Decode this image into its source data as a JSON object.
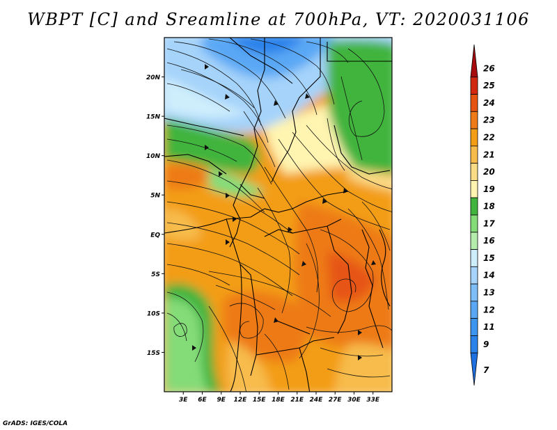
{
  "title": "WBPT [C] and Sreamline at 700hPa, VT: 2020031106",
  "credit": "GrADS: IGES/COLA",
  "map": {
    "lon_range": [
      0,
      36
    ],
    "lat_range": [
      -20,
      25
    ],
    "lat_ticks": [
      {
        "value": 20,
        "label": "20N"
      },
      {
        "value": 15,
        "label": "15N"
      },
      {
        "value": 10,
        "label": "10N"
      },
      {
        "value": 5,
        "label": "5N"
      },
      {
        "value": 0,
        "label": "EQ"
      },
      {
        "value": -5,
        "label": "5S"
      },
      {
        "value": -10,
        "label": "10S"
      },
      {
        "value": -15,
        "label": "15S"
      }
    ],
    "lon_ticks": [
      {
        "value": 3,
        "label": "3E"
      },
      {
        "value": 6,
        "label": "6E"
      },
      {
        "value": 9,
        "label": "9E"
      },
      {
        "value": 12,
        "label": "12E"
      },
      {
        "value": 15,
        "label": "15E"
      },
      {
        "value": 18,
        "label": "18E"
      },
      {
        "value": 21,
        "label": "21E"
      },
      {
        "value": 24,
        "label": "24E"
      },
      {
        "value": 27,
        "label": "27E"
      },
      {
        "value": 30,
        "label": "30E"
      },
      {
        "value": 33,
        "label": "33E"
      }
    ]
  },
  "colorbar": {
    "levels": [
      {
        "label": "7",
        "color": "#1e6fe0"
      },
      {
        "label": "9",
        "color": "#2a82ea"
      },
      {
        "label": "11",
        "color": "#3c96f0"
      },
      {
        "label": "12",
        "color": "#5aa8f5"
      },
      {
        "label": "13",
        "color": "#7dbdf8"
      },
      {
        "label": "14",
        "color": "#a5d3fa"
      },
      {
        "label": "15",
        "color": "#cfeefc"
      },
      {
        "label": "16",
        "color": "#b4ecab"
      },
      {
        "label": "17",
        "color": "#84dc79"
      },
      {
        "label": "18",
        "color": "#40b43c"
      },
      {
        "label": "19",
        "color": "#fff4b0"
      },
      {
        "label": "20",
        "color": "#fbdc86"
      },
      {
        "label": "21",
        "color": "#f7bc4c"
      },
      {
        "label": "22",
        "color": "#f39d16"
      },
      {
        "label": "23",
        "color": "#ee7a18"
      },
      {
        "label": "24",
        "color": "#e65412"
      },
      {
        "label": "25",
        "color": "#d2280e"
      },
      {
        "label": "26",
        "color": "#a60c0c"
      }
    ]
  }
}
